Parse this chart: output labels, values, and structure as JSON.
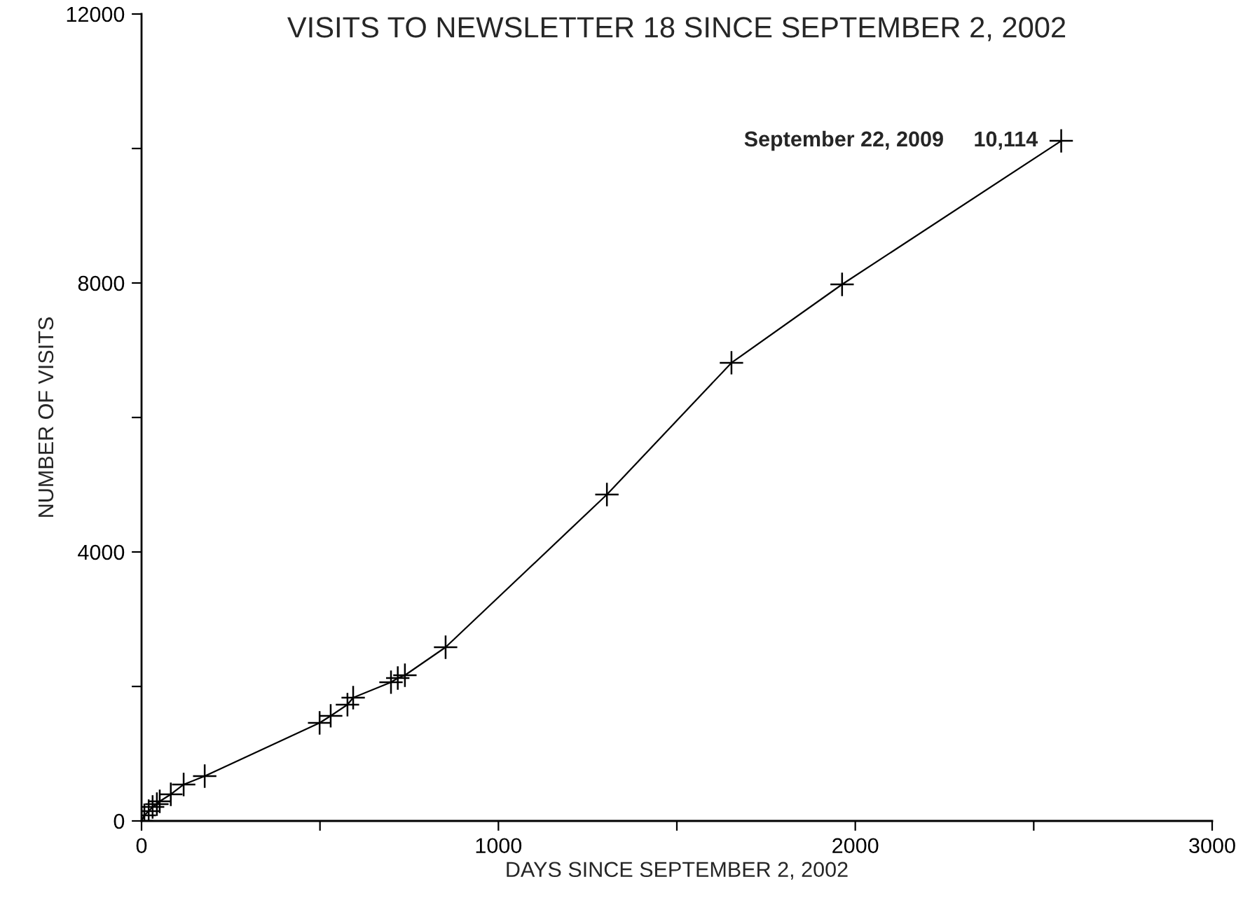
{
  "chart_data": {
    "type": "line",
    "title": "VISITS TO NEWSLETTER 18 SINCE SEPTEMBER 2, 2002",
    "xlabel": "DAYS SINCE SEPTEMBER 2, 2002",
    "ylabel": "NUMBER OF VISITS",
    "x": [
      0,
      8,
      20,
      31,
      43,
      51,
      82,
      118,
      177,
      499,
      530,
      577,
      593,
      699,
      718,
      738,
      852,
      1304,
      1653,
      1963,
      2577
    ],
    "series": [
      {
        "color": "#000000",
        "values": [
          0,
          83,
          146,
          208,
          250,
          292,
          396,
          542,
          667,
          1458,
          1563,
          1729,
          1833,
          2063,
          2125,
          2167,
          2583,
          4854,
          6813,
          7979,
          10114
        ]
      }
    ],
    "annotations": [
      {
        "text": "September 22, 2009     10,114",
        "x": 2577,
        "y": 10114
      }
    ],
    "xlim": [
      0,
      3000
    ],
    "ylim": [
      0,
      12000
    ],
    "xticks": [
      0,
      {
        "value": 500,
        "label": null
      },
      1000,
      {
        "value": 1500,
        "label": null
      },
      2000,
      {
        "value": 2500,
        "label": null
      },
      3000
    ],
    "yticks": [
      0,
      {
        "value": 2000,
        "label": null
      },
      4000,
      {
        "value": 6000,
        "label": null
      },
      8000,
      {
        "value": 10000,
        "label": null
      },
      12000
    ],
    "marker": "cross",
    "line_style": "solid",
    "grid": false,
    "legend": false
  }
}
